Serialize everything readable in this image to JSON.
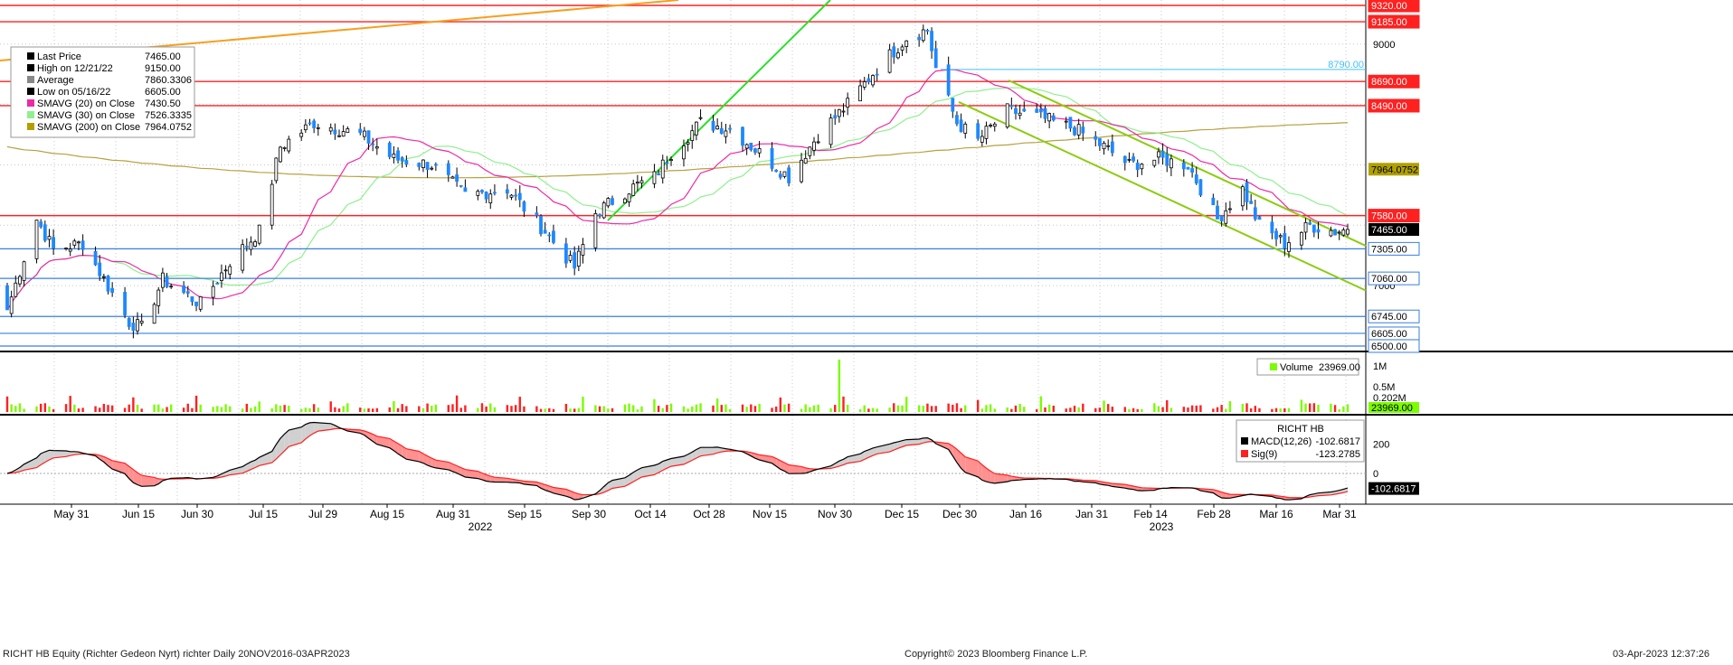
{
  "chart_data": [
    {
      "type": "candlestick",
      "panel": "price",
      "legend": {
        "placement": "top-left",
        "items": [
          {
            "label": "Last Price",
            "value": "7465.00",
            "color": "#000000"
          },
          {
            "label": "High on 12/21/22",
            "value": "9150.00",
            "color": "#000000"
          },
          {
            "label": "Average",
            "value": "7860.3306",
            "color": "#888888"
          },
          {
            "label": "Low on 05/16/22",
            "value": "6605.00",
            "color": "#000000"
          },
          {
            "label": "SMAVG (20)  on Close",
            "value": "7430.50",
            "color": "#ec2aa6"
          },
          {
            "label": "SMAVG (30)  on Close",
            "value": "7526.3335",
            "color": "#8ef08e"
          },
          {
            "label": "SMAVG (200)  on Close",
            "value": "7964.0752",
            "color": "#b0a000"
          }
        ]
      },
      "ylim": [
        6470,
        9350
      ],
      "yticks": [
        7000,
        9000
      ],
      "levels": [
        {
          "label": "9320.00",
          "value": 9320,
          "color": "#ff2020"
        },
        {
          "label": "9185.00",
          "value": 9185,
          "color": "#ff2020"
        },
        {
          "label": "8690.00",
          "value": 8690,
          "color": "#ff2020"
        },
        {
          "label": "8490.00",
          "value": 8490,
          "color": "#ff2020"
        },
        {
          "label": "7580.00",
          "value": 7580,
          "color": "#ff2020"
        },
        {
          "label": "7305.00",
          "value": 7305,
          "color": "#3a7fe0"
        },
        {
          "label": "7060.00",
          "value": 7060,
          "color": "#3a7fe0"
        },
        {
          "label": "6745.00",
          "value": 6745,
          "color": "#3a7fe0"
        },
        {
          "label": "6605.00",
          "value": 6605,
          "color": "#3a7fe0"
        },
        {
          "label": "6500.00",
          "value": 6500,
          "color": "#3a7fe0"
        }
      ],
      "right_labels": [
        {
          "label": "7964.0752",
          "value": 7964,
          "bg": "#b0a000",
          "fg": "#000000"
        },
        {
          "label": "7465.00",
          "value": 7465,
          "bg": "#000000",
          "fg": "#ffffff"
        }
      ],
      "annotation": {
        "label": "8790.00",
        "value": 8790,
        "color": "#40c0ff"
      },
      "x_labels": [
        "May 31",
        "Jun 15",
        "Jun 30",
        "Jul 15",
        "Jul 29",
        "Aug 15",
        "Aug 31",
        "Sep 15",
        "Sep 30",
        "Oct 14",
        "Oct 28",
        "Nov 15",
        "Nov 30",
        "Dec 15",
        "Dec 30",
        "Jan 16",
        "Jan 31",
        "Feb 14",
        "Feb 28",
        "Mar 16",
        "Mar 31"
      ],
      "year_labels": [
        "2022",
        "2023"
      ],
      "keypoints": [
        {
          "date": "2022-05-16",
          "close": 6800
        },
        {
          "date": "2022-05-23",
          "close": 7550
        },
        {
          "date": "2022-05-27",
          "close": 7300
        },
        {
          "date": "2022-06-03",
          "close": 7350
        },
        {
          "date": "2022-06-14",
          "close": 6700
        },
        {
          "date": "2022-06-17",
          "close": 6650
        },
        {
          "date": "2022-06-22",
          "close": 7050
        },
        {
          "date": "2022-07-01",
          "close": 6850
        },
        {
          "date": "2022-07-08",
          "close": 7200
        },
        {
          "date": "2022-07-15",
          "close": 7450
        },
        {
          "date": "2022-07-20",
          "close": 8150
        },
        {
          "date": "2022-07-28",
          "close": 8350
        },
        {
          "date": "2022-08-08",
          "close": 8250
        },
        {
          "date": "2022-08-16",
          "close": 8050
        },
        {
          "date": "2022-08-25",
          "close": 8000
        },
        {
          "date": "2022-09-02",
          "close": 7750
        },
        {
          "date": "2022-09-12",
          "close": 7800
        },
        {
          "date": "2022-09-21",
          "close": 7450
        },
        {
          "date": "2022-09-28",
          "close": 7150
        },
        {
          "date": "2022-10-03",
          "close": 7600
        },
        {
          "date": "2022-10-11",
          "close": 7800
        },
        {
          "date": "2022-10-17",
          "close": 7900
        },
        {
          "date": "2022-10-21",
          "close": 8100
        },
        {
          "date": "2022-10-28",
          "close": 8350
        },
        {
          "date": "2022-11-04",
          "close": 8300
        },
        {
          "date": "2022-11-11",
          "close": 8100
        },
        {
          "date": "2022-11-18",
          "close": 7900
        },
        {
          "date": "2022-11-25",
          "close": 8250
        },
        {
          "date": "2022-12-02",
          "close": 8500
        },
        {
          "date": "2022-12-09",
          "close": 8800
        },
        {
          "date": "2022-12-16",
          "close": 9050
        },
        {
          "date": "2022-12-21",
          "close": 9120
        },
        {
          "date": "2022-12-23",
          "close": 8800
        },
        {
          "date": "2022-12-28",
          "close": 8350
        },
        {
          "date": "2023-01-02",
          "close": 8200
        },
        {
          "date": "2023-01-09",
          "close": 8450
        },
        {
          "date": "2023-01-16",
          "close": 8400
        },
        {
          "date": "2023-01-25",
          "close": 8300
        },
        {
          "date": "2023-02-01",
          "close": 8150
        },
        {
          "date": "2023-02-07",
          "close": 8000
        },
        {
          "date": "2023-02-14",
          "close": 8050
        },
        {
          "date": "2023-02-21",
          "close": 8000
        },
        {
          "date": "2023-02-28",
          "close": 7550
        },
        {
          "date": "2023-03-06",
          "close": 7800
        },
        {
          "date": "2023-03-10",
          "close": 7500
        },
        {
          "date": "2023-03-16",
          "close": 7350
        },
        {
          "date": "2023-03-22",
          "close": 7500
        },
        {
          "date": "2023-03-28",
          "close": 7450
        },
        {
          "date": "2023-03-31",
          "close": 7465
        }
      ]
    },
    {
      "type": "bar",
      "panel": "volume",
      "legend": {
        "label": "Volume",
        "value": "23969.00",
        "color": "#7cfc00"
      },
      "tick_labels": [
        "1M",
        "0.5M",
        "0.202M"
      ],
      "last_value_label": "23969.00"
    },
    {
      "type": "line",
      "panel": "macd",
      "legend": {
        "title": "RICHT HB",
        "items": [
          {
            "label": "MACD(12,26)",
            "value": "-102.6817",
            "color": "#000000"
          },
          {
            "label": "Sig(9)",
            "value": "-123.2785",
            "color": "#ff2020"
          }
        ]
      },
      "tick_labels": [
        "200",
        "0"
      ],
      "last_value_label": "-102.6817"
    }
  ],
  "footer": {
    "left": "RICHT HB Equity (Richter Gedeon Nyrt) richter  Daily 20NOV2016-03APR2023",
    "center": "Copyright© 2023 Bloomberg Finance L.P.",
    "right": "03-Apr-2023 12:37:26"
  }
}
